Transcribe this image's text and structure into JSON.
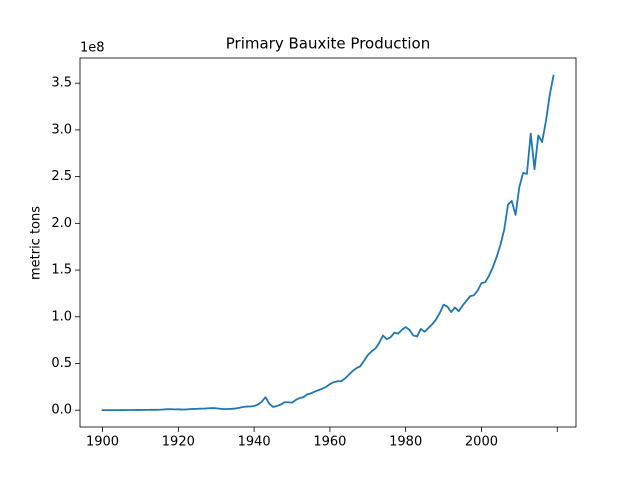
{
  "chart_data": {
    "type": "line",
    "title": "Primary Bauxite Production",
    "ylabel": "metric tons",
    "y_offset_label": "1e8",
    "color": "#1f77b4",
    "x": [
      1900,
      1901,
      1902,
      1903,
      1904,
      1905,
      1906,
      1907,
      1908,
      1909,
      1910,
      1911,
      1912,
      1913,
      1914,
      1915,
      1916,
      1917,
      1918,
      1919,
      1920,
      1921,
      1922,
      1923,
      1924,
      1925,
      1926,
      1927,
      1928,
      1929,
      1930,
      1931,
      1932,
      1933,
      1934,
      1935,
      1936,
      1937,
      1938,
      1939,
      1940,
      1941,
      1942,
      1943,
      1944,
      1945,
      1946,
      1947,
      1948,
      1949,
      1950,
      1951,
      1952,
      1953,
      1954,
      1955,
      1956,
      1957,
      1958,
      1959,
      1960,
      1961,
      1962,
      1963,
      1964,
      1965,
      1966,
      1967,
      1968,
      1969,
      1970,
      1971,
      1972,
      1973,
      1974,
      1975,
      1976,
      1977,
      1978,
      1979,
      1980,
      1981,
      1982,
      1983,
      1984,
      1985,
      1986,
      1987,
      1988,
      1989,
      1990,
      1991,
      1992,
      1993,
      1994,
      1995,
      1996,
      1997,
      1998,
      1999,
      2000,
      2001,
      2002,
      2003,
      2004,
      2005,
      2006,
      2007,
      2008,
      2009,
      2010,
      2011,
      2012,
      2013,
      2014,
      2015,
      2016,
      2017,
      2018,
      2019
    ],
    "values": [
      90000,
      100000,
      110000,
      120000,
      140000,
      170000,
      200000,
      240000,
      260000,
      300000,
      320000,
      350000,
      400000,
      500000,
      450000,
      500000,
      800000,
      1100000,
      1200000,
      900000,
      1000000,
      700000,
      800000,
      1200000,
      1400000,
      1500000,
      1700000,
      1800000,
      2100000,
      2300000,
      2100000,
      1600000,
      1200000,
      1300000,
      1500000,
      1800000,
      2500000,
      3500000,
      3900000,
      4000000,
      4500000,
      6000000,
      9000000,
      14000000,
      7000000,
      3500000,
      4500000,
      6000000,
      8500000,
      8500000,
      8000000,
      11000000,
      13000000,
      14000000,
      17000000,
      18000000,
      20000000,
      21500000,
      23000000,
      25000000,
      28000000,
      30000000,
      31000000,
      31000000,
      34000000,
      38000000,
      42000000,
      45000000,
      47000000,
      53000000,
      59000000,
      63000000,
      66000000,
      72000000,
      80000000,
      76000000,
      78000000,
      83000000,
      82000000,
      86000000,
      89000000,
      86000000,
      80000000,
      79000000,
      87000000,
      84000000,
      88000000,
      92000000,
      97000000,
      104000000,
      113000000,
      111000000,
      105000000,
      110000000,
      106000000,
      112000000,
      117000000,
      122000000,
      123000000,
      128000000,
      136000000,
      137000000,
      144000000,
      153000000,
      164000000,
      177000000,
      193000000,
      220000000,
      224000000,
      209000000,
      239000000,
      254000000,
      253000000,
      296000000,
      258000000,
      294000000,
      287000000,
      309000000,
      337000000,
      358000000
    ],
    "xlim": [
      1894.05,
      2024.95
    ],
    "xticks": [
      1900,
      1920,
      1940,
      1960,
      1980,
      2000,
      {
        "value": 2020,
        "label": null
      }
    ],
    "ylim": [
      -17950000,
      376950000
    ],
    "yticks": [
      {
        "value": 0,
        "label": "0.0"
      },
      {
        "value": 50000000,
        "label": "0.5"
      },
      {
        "value": 100000000,
        "label": "1.0"
      },
      {
        "value": 150000000,
        "label": "1.5"
      },
      {
        "value": 200000000,
        "label": "2.0"
      },
      {
        "value": 250000000,
        "label": "2.5"
      },
      {
        "value": 300000000,
        "label": "3.0"
      },
      {
        "value": 350000000,
        "label": "3.5"
      }
    ]
  }
}
